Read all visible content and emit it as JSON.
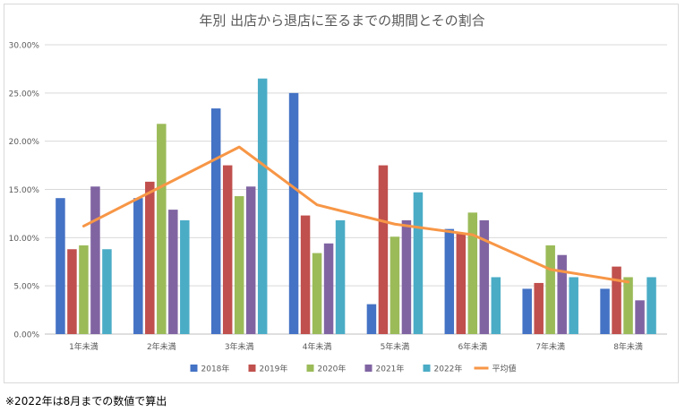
{
  "footnote": "※2022年は8月までの数値で算出",
  "chart_data": {
    "type": "bar",
    "title": "年別 出店から退店に至るまでの期間とその割合",
    "xlabel": "",
    "ylabel": "",
    "ylim": [
      0,
      30
    ],
    "yticks": [
      "0.00%",
      "5.00%",
      "10.00%",
      "15.00%",
      "20.00%",
      "25.00%",
      "30.00%"
    ],
    "ytick_values": [
      0,
      5,
      10,
      15,
      20,
      25,
      30
    ],
    "grid": true,
    "legend_position": "bottom",
    "categories": [
      "1年未満",
      "2年未満",
      "3年未満",
      "4年未満",
      "5年未満",
      "6年未満",
      "7年未満",
      "8年未満"
    ],
    "series": [
      {
        "name": "2018年",
        "color": "#4472C4",
        "values": [
          14.1,
          14.1,
          23.4,
          25.0,
          3.1,
          10.9,
          4.7,
          4.7
        ]
      },
      {
        "name": "2019年",
        "color": "#C0504D",
        "values": [
          8.8,
          15.8,
          17.5,
          12.3,
          17.5,
          10.5,
          5.3,
          7.0
        ]
      },
      {
        "name": "2020年",
        "color": "#9BBB59",
        "values": [
          9.2,
          21.8,
          14.3,
          8.4,
          10.1,
          12.6,
          9.2,
          5.9
        ]
      },
      {
        "name": "2021年",
        "color": "#8064A2",
        "values": [
          15.3,
          12.9,
          15.3,
          9.4,
          11.8,
          11.8,
          8.2,
          3.5
        ]
      },
      {
        "name": "2022年",
        "color": "#4BACC6",
        "values": [
          8.8,
          11.8,
          26.5,
          11.8,
          14.7,
          5.9,
          5.9,
          5.9
        ]
      }
    ],
    "line_series": {
      "name": "平均値",
      "color": "#F79646",
      "values": [
        11.2,
        15.3,
        19.4,
        13.4,
        11.4,
        10.3,
        6.7,
        5.4
      ]
    }
  }
}
